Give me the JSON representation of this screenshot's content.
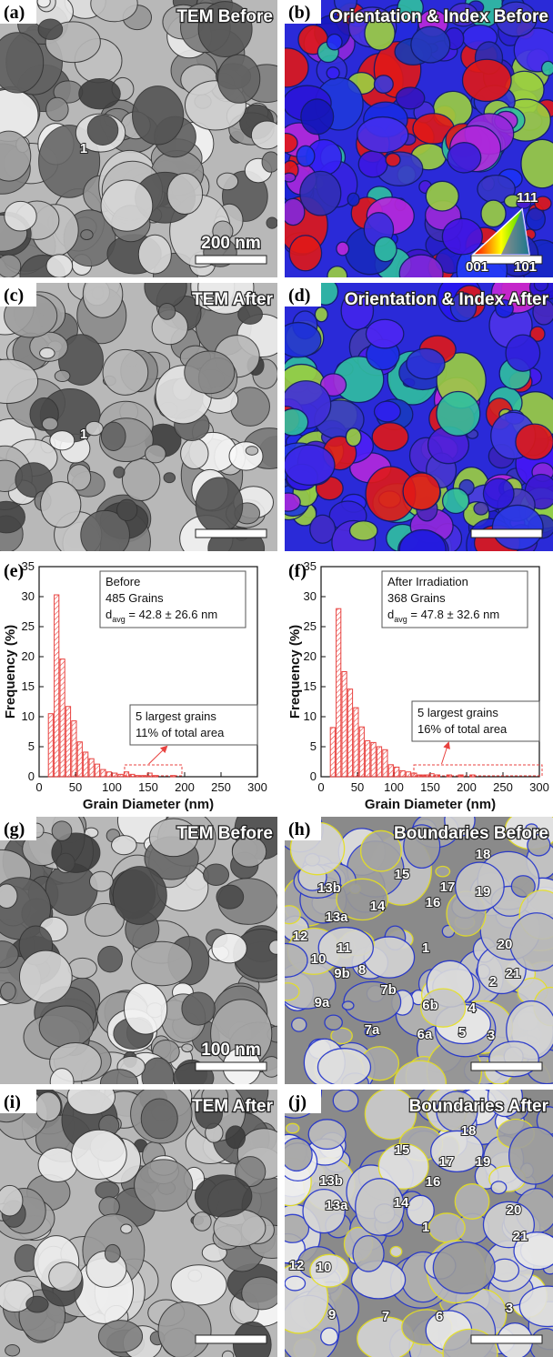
{
  "panels": [
    {
      "label": "(a)",
      "title": "TEM Before",
      "scale_bar": "200 nm",
      "grain_labels": [
        "1"
      ]
    },
    {
      "label": "(b)",
      "title": "Orientation & Index Before"
    },
    {
      "label": "(c)",
      "title": "TEM After",
      "grain_labels": [
        "1"
      ]
    },
    {
      "label": "(d)",
      "title": "Orientation & Index After"
    },
    {
      "label": "(g)",
      "title": "TEM Before",
      "scale_bar": "100 nm"
    },
    {
      "label": "(h)",
      "title": "Boundaries Before",
      "grain_labels": [
        "18",
        "15",
        "17",
        "13b",
        "19",
        "16",
        "14",
        "13a",
        "12",
        "1",
        "20",
        "11",
        "10",
        "9b",
        "8",
        "2",
        "21",
        "7b",
        "9a",
        "6b",
        "4",
        "7a",
        "6a",
        "5",
        "3"
      ]
    },
    {
      "label": "(i)",
      "title": "TEM After"
    },
    {
      "label": "(j)",
      "title": "Boundaries After",
      "grain_labels": [
        "18",
        "15",
        "17",
        "19",
        "13b",
        "16",
        "14",
        "13a",
        "1",
        "20",
        "21",
        "12",
        "10",
        "3",
        "9",
        "7",
        "6"
      ]
    }
  ],
  "inset": {
    "top": "111",
    "left": "001",
    "right": "101"
  },
  "chart_data": [
    {
      "type": "histogram",
      "panel_label": "(e)",
      "xlabel": "Grain Diameter (nm)",
      "ylabel": "Frequency (%)",
      "bins": [
        12,
        20,
        28,
        36,
        44,
        52,
        60,
        68,
        76,
        84,
        92,
        100,
        108,
        116,
        124,
        132,
        140,
        148,
        156,
        164,
        172,
        180,
        188
      ],
      "values": [
        10.5,
        30.3,
        19.6,
        11.7,
        9.3,
        5.8,
        4.1,
        3.0,
        2.1,
        1.2,
        0.8,
        0.6,
        0.4,
        0.8,
        0.4,
        0.2,
        0.2,
        0.6,
        0.2,
        0,
        0,
        0.2
      ],
      "color": "#e8423f",
      "xlim": [
        0,
        300
      ],
      "xticks": [
        0,
        50,
        100,
        150,
        200,
        250,
        300
      ],
      "ylim": [
        0,
        35
      ],
      "yticks": [
        0,
        5,
        10,
        15,
        20,
        25,
        30,
        35
      ],
      "annotation": {
        "lines": [
          "Before",
          "485 Grains"
        ],
        "d_symbol": "d",
        "d_subscript": "avg",
        "d_value": " = 42.8 ± 26.6 nm"
      },
      "note": [
        "5 largest grains",
        "11% of total area"
      ]
    },
    {
      "type": "histogram",
      "panel_label": "(f)",
      "xlabel": "Grain Diameter (nm)",
      "ylabel": "Frequency (%)",
      "bins": [
        12,
        20,
        28,
        36,
        44,
        52,
        60,
        68,
        76,
        84,
        92,
        100,
        108,
        116,
        124,
        132,
        140,
        148,
        156,
        164,
        172,
        180,
        188,
        196,
        204,
        212
      ],
      "values": [
        8.2,
        28.0,
        17.5,
        14.6,
        11.5,
        8.3,
        6.0,
        5.7,
        5.0,
        4.5,
        2.0,
        1.6,
        1.0,
        0.8,
        0.6,
        0.3,
        0.3,
        0.5,
        0.3,
        0,
        0.3,
        0,
        0.3,
        0,
        0.3
      ],
      "color": "#e8423f",
      "xlim": [
        0,
        300
      ],
      "xticks": [
        0,
        50,
        100,
        150,
        200,
        250,
        300
      ],
      "ylim": [
        0,
        35
      ],
      "yticks": [
        0,
        5,
        10,
        15,
        20,
        25,
        30,
        35
      ],
      "annotation": {
        "lines": [
          "After Irradiation",
          "368 Grains"
        ],
        "d_symbol": "d",
        "d_subscript": "avg",
        "d_value": " = 47.8 ± 32.6 nm"
      },
      "note": [
        "5 largest grains",
        "16% of total area"
      ]
    }
  ]
}
